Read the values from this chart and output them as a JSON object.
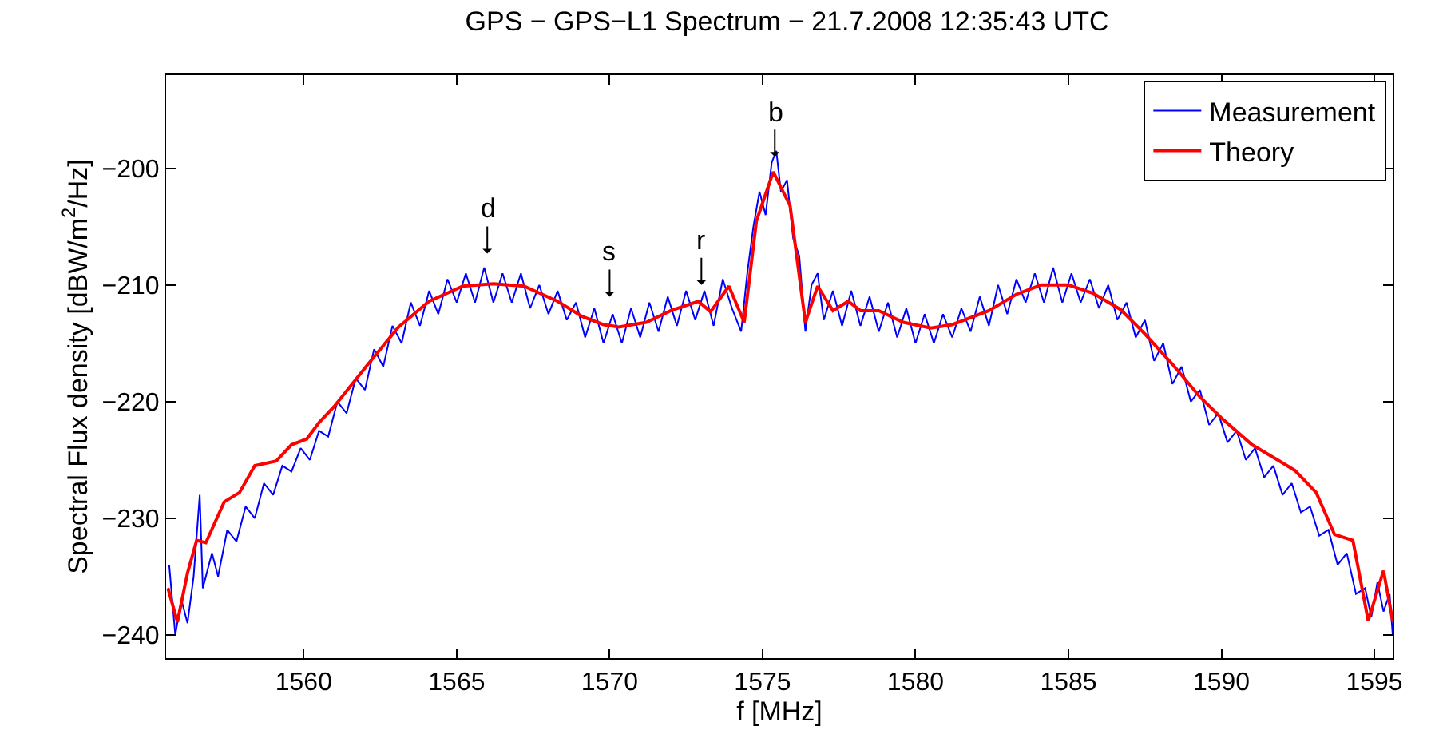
{
  "chart_data": {
    "type": "line",
    "title": "GPS − GPS−L1 Spectrum − 21.7.2008 12:35:43 UTC",
    "xlabel": "f [MHz]",
    "ylabel": "Spectral Flux density [dBW/m$^{2}$/Hz]",
    "xlim": [
      1555.5,
      1595.6
    ],
    "ylim": [
      -242,
      -192
    ],
    "xticks": [
      1560,
      1565,
      1570,
      1575,
      1580,
      1585,
      1590,
      1595
    ],
    "yticks": [
      -240,
      -230,
      -220,
      -210,
      -200
    ],
    "legend": "top right",
    "marker": "none",
    "line_style": "solid",
    "annotations": [
      {
        "text": "d",
        "x": 1566,
        "y": -207.3
      },
      {
        "text": "s",
        "x": 1570,
        "y": -211
      },
      {
        "text": "r",
        "x": 1573,
        "y": -210
      },
      {
        "text": "b",
        "x": 1575.4,
        "y": -199
      }
    ],
    "series": [
      {
        "name": "Measurement",
        "color": "#0000ff",
        "x": [
          1555.6,
          1555.8,
          1556.0,
          1556.2,
          1556.4,
          1556.6,
          1556.7,
          1557.0,
          1557.2,
          1557.5,
          1557.8,
          1558.1,
          1558.4,
          1558.7,
          1559.0,
          1559.3,
          1559.6,
          1559.9,
          1560.2,
          1560.5,
          1560.8,
          1561.1,
          1561.4,
          1561.7,
          1562.0,
          1562.3,
          1562.6,
          1562.9,
          1563.2,
          1563.5,
          1563.8,
          1564.1,
          1564.4,
          1564.7,
          1565.0,
          1565.3,
          1565.6,
          1565.9,
          1566.2,
          1566.5,
          1566.8,
          1567.1,
          1567.4,
          1567.7,
          1568.0,
          1568.3,
          1568.6,
          1568.9,
          1569.2,
          1569.5,
          1569.8,
          1570.1,
          1570.4,
          1570.7,
          1571.0,
          1571.3,
          1571.6,
          1571.9,
          1572.2,
          1572.5,
          1572.8,
          1573.1,
          1573.4,
          1573.7,
          1574.0,
          1574.3,
          1574.5,
          1574.7,
          1574.9,
          1575.1,
          1575.3,
          1575.45,
          1575.6,
          1575.8,
          1576.0,
          1576.2,
          1576.4,
          1576.6,
          1576.8,
          1577.0,
          1577.3,
          1577.6,
          1577.9,
          1578.2,
          1578.5,
          1578.8,
          1579.1,
          1579.4,
          1579.7,
          1580.0,
          1580.3,
          1580.6,
          1580.9,
          1581.2,
          1581.5,
          1581.8,
          1582.1,
          1582.4,
          1582.7,
          1583.0,
          1583.3,
          1583.6,
          1583.9,
          1584.2,
          1584.5,
          1584.8,
          1585.1,
          1585.4,
          1585.7,
          1586.0,
          1586.3,
          1586.6,
          1586.9,
          1587.2,
          1587.5,
          1587.8,
          1588.1,
          1588.4,
          1588.7,
          1589.0,
          1589.3,
          1589.6,
          1589.9,
          1590.2,
          1590.5,
          1590.8,
          1591.1,
          1591.4,
          1591.7,
          1592.0,
          1592.3,
          1592.6,
          1592.9,
          1593.2,
          1593.5,
          1593.8,
          1594.1,
          1594.4,
          1594.7,
          1594.9,
          1595.1,
          1595.3,
          1595.5,
          1595.6
        ],
        "values": [
          -234,
          -240,
          -237,
          -239,
          -235,
          -228,
          -236,
          -233,
          -235,
          -231,
          -232,
          -229,
          -230,
          -227,
          -228,
          -225.5,
          -226,
          -224,
          -225,
          -222.5,
          -223,
          -220,
          -221,
          -218,
          -219,
          -215.5,
          -217,
          -213.5,
          -215,
          -211.5,
          -213.5,
          -210.5,
          -212.5,
          -209.5,
          -211.5,
          -209,
          -211.5,
          -208.5,
          -211.5,
          -209,
          -211.5,
          -209,
          -212,
          -210,
          -212.5,
          -210.5,
          -213,
          -211.5,
          -214.5,
          -212,
          -215,
          -212.5,
          -215,
          -212,
          -214.5,
          -211.5,
          -214,
          -211,
          -213.5,
          -210.5,
          -213,
          -210.5,
          -213.5,
          -209.5,
          -212,
          -214,
          -209,
          -205,
          -202,
          -204,
          -199.5,
          -198.5,
          -202,
          -201,
          -206,
          -207.5,
          -214,
          -210,
          -209,
          -213,
          -210.5,
          -213.5,
          -210.5,
          -213.5,
          -211,
          -214,
          -211.5,
          -214.5,
          -212,
          -215,
          -212.5,
          -215,
          -212.5,
          -214.5,
          -212,
          -214,
          -211,
          -213.5,
          -210,
          -212.5,
          -209.5,
          -211.5,
          -209,
          -211.5,
          -208.5,
          -211.5,
          -209,
          -211.5,
          -209.5,
          -212,
          -210,
          -213,
          -211.5,
          -214.5,
          -213,
          -216.5,
          -215,
          -218.5,
          -217,
          -220,
          -219,
          -222,
          -221,
          -223.5,
          -222.5,
          -225,
          -224,
          -226.5,
          -225.5,
          -228,
          -227,
          -229.5,
          -229,
          -231.5,
          -231,
          -234,
          -233,
          -236.5,
          -236,
          -238.5,
          -235.5,
          -238,
          -236.5,
          -240
        ]
      },
      {
        "name": "Theory",
        "color": "#ff0000",
        "x": [
          1555.56,
          1555.87,
          1556.2,
          1556.5,
          1556.8,
          1557.4,
          1557.9,
          1558.4,
          1559.1,
          1559.6,
          1560.1,
          1560.5,
          1561.0,
          1562.1,
          1563.1,
          1564.1,
          1565.2,
          1566.2,
          1567.2,
          1568.3,
          1569.1,
          1569.8,
          1570.3,
          1571.2,
          1572.0,
          1572.9,
          1573.3,
          1573.9,
          1574.4,
          1574.8,
          1575.35,
          1575.9,
          1576.4,
          1576.8,
          1577.3,
          1577.8,
          1578.2,
          1578.8,
          1579.6,
          1580.5,
          1581.2,
          1582.4,
          1583.3,
          1584.1,
          1585.0,
          1585.8,
          1586.7,
          1587.5,
          1588.4,
          1589.3,
          1590.0,
          1591.0,
          1591.9,
          1592.4,
          1593.1,
          1593.7,
          1594.3,
          1594.8,
          1595.3,
          1595.6
        ],
        "values": [
          -236.0,
          -238.9,
          -234.7,
          -231.9,
          -232.1,
          -228.6,
          -227.8,
          -225.5,
          -225.1,
          -223.7,
          -223.2,
          -221.8,
          -220.4,
          -216.8,
          -213.6,
          -211.4,
          -210.1,
          -209.9,
          -210.1,
          -211.4,
          -212.7,
          -213.4,
          -213.6,
          -213.2,
          -212.2,
          -211.4,
          -212.3,
          -210.1,
          -213.2,
          -204.5,
          -200.3,
          -203.2,
          -213.2,
          -210.1,
          -212.2,
          -211.4,
          -212.2,
          -212.2,
          -213.2,
          -213.7,
          -213.4,
          -212.2,
          -210.8,
          -210.0,
          -210.0,
          -210.7,
          -212.1,
          -214.2,
          -216.8,
          -219.6,
          -221.4,
          -223.7,
          -225.1,
          -225.9,
          -227.8,
          -231.4,
          -231.9,
          -238.8,
          -234.5,
          -238.8
        ]
      }
    ]
  }
}
